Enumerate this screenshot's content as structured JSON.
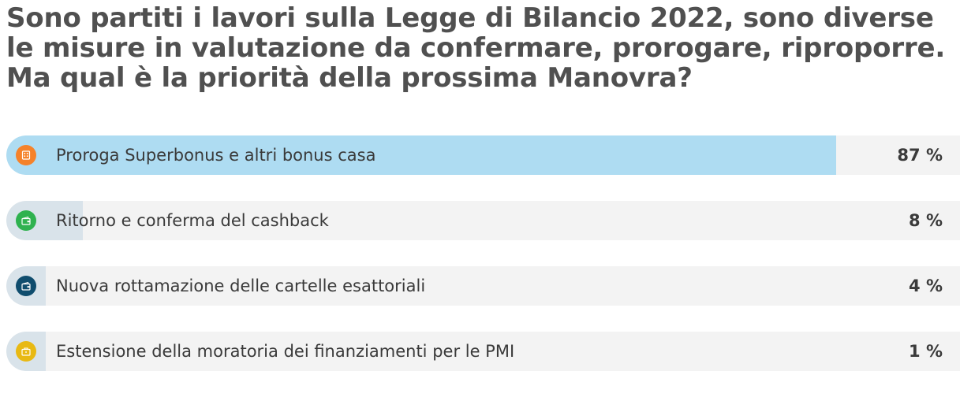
{
  "poll": {
    "question": "Sono partiti i lavori sulla Legge di Bilancio 2022, sono diverse le misure in valutazione da confermare, prorogare, riproporre. Ma qual è la priorità della prossima Manovra?",
    "options": [
      {
        "label": "Proroga Superbonus e altri bonus casa",
        "percent_text": "87 %",
        "share": 0.87,
        "icon": "house-icon",
        "icon_color": "#f5822a",
        "fill_color": "#aedcf2"
      },
      {
        "label": "Ritorno e conferma del cashback",
        "percent_text": "8 %",
        "share": 0.08,
        "icon": "wallet-icon",
        "icon_color": "#2fb24f",
        "fill_color": "#d9e3ea"
      },
      {
        "label": "Nuova rottamazione delle cartelle esattoriali",
        "percent_text": "4 %",
        "share": 0.04,
        "icon": "wallet-icon",
        "icon_color": "#0f4d6e",
        "fill_color": "#d9e3ea"
      },
      {
        "label": "Estensione della moratoria dei finanziamenti per le PMI",
        "percent_text": "1 %",
        "share": 0.01,
        "icon": "briefcase-icon",
        "icon_color": "#e8b913",
        "fill_color": "#d9e3ea"
      }
    ]
  }
}
